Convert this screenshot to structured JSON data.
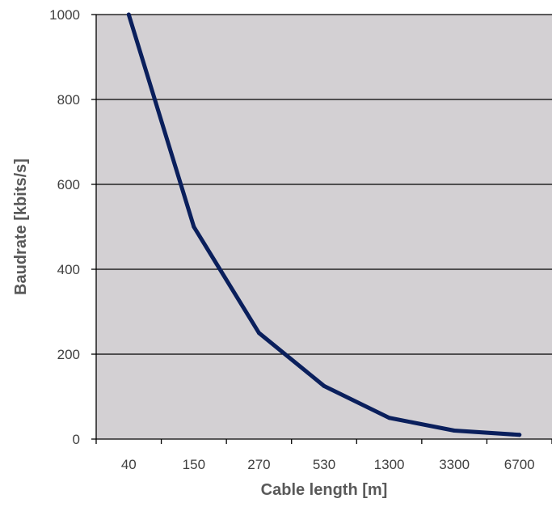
{
  "chart_data": {
    "type": "line",
    "title": "",
    "xlabel": "Cable length [m]",
    "ylabel": "Baudrate [kbits/s]",
    "categories": [
      "40",
      "150",
      "270",
      "530",
      "1300",
      "3300",
      "6700"
    ],
    "series": [
      {
        "values": [
          1000,
          500,
          250,
          125,
          50,
          20,
          10
        ]
      }
    ],
    "ylim": [
      0,
      1000
    ],
    "yticks": [
      "0",
      "200",
      "400",
      "600",
      "800",
      "1000"
    ],
    "grid": true,
    "legend": "none",
    "colors": {
      "plot_background": "#d3d0d3",
      "line": "#0a1f5c",
      "grid": "#000000",
      "axis": "#000000"
    }
  }
}
